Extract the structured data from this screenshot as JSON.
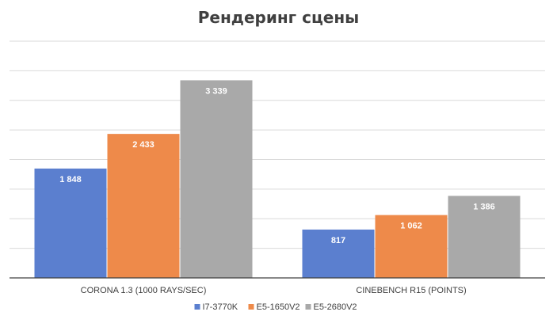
{
  "chart_data": {
    "type": "bar",
    "title": "Рендеринг сцены",
    "categories": [
      "CORONA 1.3 (1000 RAYS/SEC)",
      "CINEBENCH R15 (POINTS)"
    ],
    "series": [
      {
        "name": "I7-3770K",
        "values": [
          1848,
          817
        ],
        "labels": [
          "1 848",
          "817"
        ],
        "color": "#5B7FCF"
      },
      {
        "name": "E5-1650V2",
        "values": [
          2433,
          1062
        ],
        "labels": [
          "2 433",
          "1 062"
        ],
        "color": "#EE8A4A"
      },
      {
        "name": "E5-2680V2",
        "values": [
          3339,
          1386
        ],
        "labels": [
          "3 339",
          "1 386"
        ],
        "color": "#A9A9A9"
      }
    ],
    "ylim": [
      0,
      4000
    ],
    "grid": true,
    "legend_position": "bottom-center",
    "axis_tick_labels_visible": false
  }
}
